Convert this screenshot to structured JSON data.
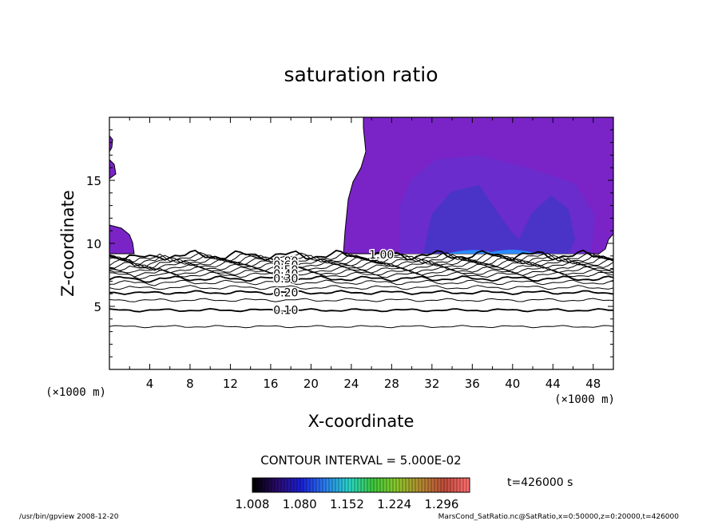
{
  "chart_data": {
    "type": "contour",
    "title": "saturation ratio",
    "xlabel": "X-coordinate",
    "ylabel": "Z-coordinate",
    "x_unit": "(×1000 m)",
    "z_unit": "(×1000 m)",
    "xlim": [
      0,
      50
    ],
    "ylim": [
      0,
      20
    ],
    "x_ticks": [
      4,
      8,
      12,
      16,
      20,
      24,
      28,
      32,
      36,
      40,
      44,
      48
    ],
    "y_ticks": [
      5,
      10,
      15
    ],
    "contour_labels": [
      {
        "text": "1.00",
        "x": 27.0,
        "z": 9.1
      },
      {
        "text": "0.80",
        "x": 17.5,
        "z": 8.6
      },
      {
        "text": "0.60",
        "x": 17.5,
        "z": 8.3
      },
      {
        "text": "0.50",
        "x": 17.5,
        "z": 7.9
      },
      {
        "text": "0.40",
        "x": 17.5,
        "z": 7.6
      },
      {
        "text": "0.30",
        "x": 17.5,
        "z": 7.2
      },
      {
        "text": "0.20",
        "x": 17.5,
        "z": 6.1
      },
      {
        "text": "0.10",
        "x": 17.5,
        "z": 4.7
      }
    ],
    "contour_interval_text": "CONTOUR INTERVAL = 5.000E-02",
    "colorbar": {
      "tick_labels": [
        "1.008",
        "1.080",
        "1.152",
        "1.224",
        "1.296"
      ],
      "min": 1.008,
      "max": 1.296,
      "colors": [
        "#000000",
        "#2a0a6e",
        "#1a20d8",
        "#2a7ef0",
        "#27d6c8",
        "#3cc83c",
        "#8ac82a",
        "#b48a30",
        "#c04a3a",
        "#ff6e6e"
      ]
    },
    "time_label": "t=426000 s",
    "fill_colors": {
      "base": "#7a24c8",
      "mid": "#5a32c8",
      "deep": "#3a3ac4",
      "peak": "#2a8cff"
    }
  },
  "footer": {
    "left": "/usr/bin/gpview  2008-12-20",
    "right": "MarsCond_SatRatio.nc@SatRatio,x=0:50000,z=0:20000,t=426000"
  }
}
